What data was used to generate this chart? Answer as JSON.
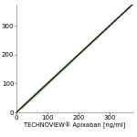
{
  "xlabel": "TECHNOVIEW® Apixaban [ng/ml]",
  "xlim": [
    0,
    375
  ],
  "ylim": [
    0,
    375
  ],
  "xticks": [
    0,
    100,
    200,
    300
  ],
  "yticks": [
    0,
    100,
    200,
    300
  ],
  "scatter_color": "#c2d9b0",
  "scatter_size": 7,
  "line_color": "#111111",
  "line_width": 1.0,
  "background_color": "#ffffff",
  "scatter_x": [
    18,
    20,
    22,
    24,
    26,
    28,
    30,
    32,
    35,
    37,
    40,
    42,
    44,
    46,
    48,
    50,
    52,
    55,
    57,
    60,
    62,
    65,
    68,
    70,
    72,
    75,
    78,
    80,
    83,
    85,
    88,
    90,
    93,
    96,
    100,
    104,
    108,
    112,
    116,
    120,
    125,
    130,
    135,
    140,
    145,
    150,
    155,
    160,
    165,
    170,
    175,
    180,
    188,
    195,
    202,
    210,
    218,
    225,
    232,
    240,
    248,
    255,
    262,
    270,
    278,
    288,
    298,
    308,
    318,
    328,
    340,
    352,
    362
  ],
  "scatter_y": [
    16,
    18,
    21,
    23,
    25,
    27,
    29,
    31,
    34,
    36,
    39,
    41,
    43,
    45,
    47,
    49,
    51,
    54,
    56,
    59,
    61,
    64,
    66,
    69,
    71,
    74,
    77,
    79,
    82,
    84,
    87,
    89,
    92,
    95,
    98,
    103,
    107,
    111,
    115,
    119,
    124,
    129,
    134,
    139,
    144,
    149,
    154,
    159,
    164,
    169,
    174,
    179,
    187,
    194,
    201,
    209,
    217,
    224,
    231,
    239,
    247,
    254,
    261,
    269,
    277,
    287,
    297,
    307,
    318,
    328,
    340,
    351,
    361
  ],
  "tick_fontsize": 5.0,
  "label_fontsize": 4.8
}
